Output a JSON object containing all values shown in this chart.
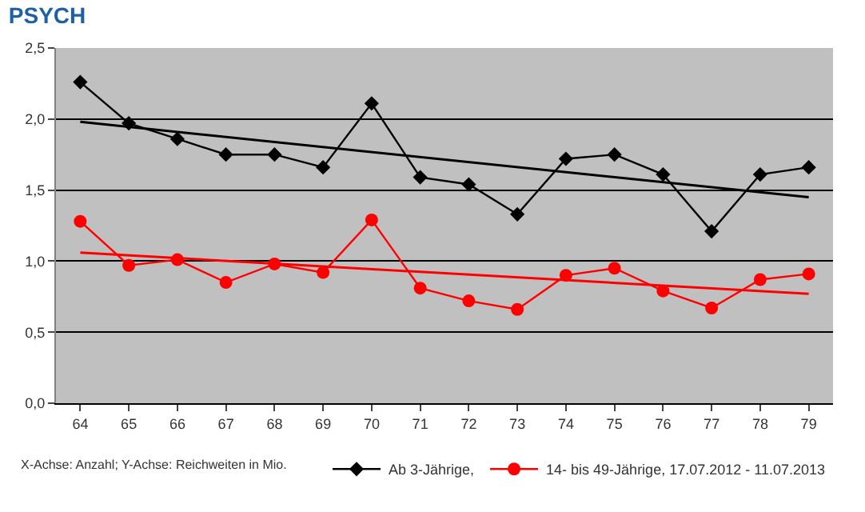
{
  "chart_data": {
    "type": "line",
    "title": "PSYCH",
    "categories": [
      "64",
      "65",
      "66",
      "67",
      "68",
      "69",
      "70",
      "71",
      "72",
      "73",
      "74",
      "75",
      "76",
      "77",
      "78",
      "79"
    ],
    "series": [
      {
        "name": "Ab 3-Jährige,",
        "color": "#000000",
        "marker": "diamond",
        "values": [
          2.26,
          1.97,
          1.86,
          1.75,
          1.75,
          1.66,
          2.11,
          1.59,
          1.54,
          1.33,
          1.72,
          1.75,
          1.61,
          1.21,
          1.61,
          1.66
        ]
      },
      {
        "name": "14- bis 49-Jährige, 17.07.2012 - 11.07.2013",
        "color": "#ff0000",
        "marker": "circle",
        "values": [
          1.28,
          0.97,
          1.01,
          0.85,
          0.98,
          0.92,
          1.29,
          0.81,
          0.72,
          0.66,
          0.9,
          0.95,
          0.79,
          0.67,
          0.87,
          0.91
        ]
      },
      {
        "type": "line",
        "color": "#000000",
        "marker": "none",
        "x": [
          "64",
          "79"
        ],
        "values": [
          1.98,
          1.45
        ]
      },
      {
        "type": "line",
        "color": "#ff0000",
        "marker": "none",
        "x": [
          "64",
          "79"
        ],
        "values": [
          1.06,
          0.77
        ]
      }
    ],
    "ylim": [
      0,
      2.5
    ],
    "yticks": [
      {
        "value": 0,
        "label": "0,0"
      },
      {
        "value": 0.5,
        "label": "0,5"
      },
      {
        "value": 1,
        "label": "1,0"
      },
      {
        "value": 1.5,
        "label": "1,5"
      },
      {
        "value": 2,
        "label": "2,0"
      },
      {
        "value": 2.5,
        "label": "2,5"
      }
    ],
    "grid": "y",
    "legend": "bottom right",
    "line_style": "solid",
    "annotations": [
      "X-Achse: Anzahl; Y-Achse: Reichweiten in Mio."
    ]
  }
}
